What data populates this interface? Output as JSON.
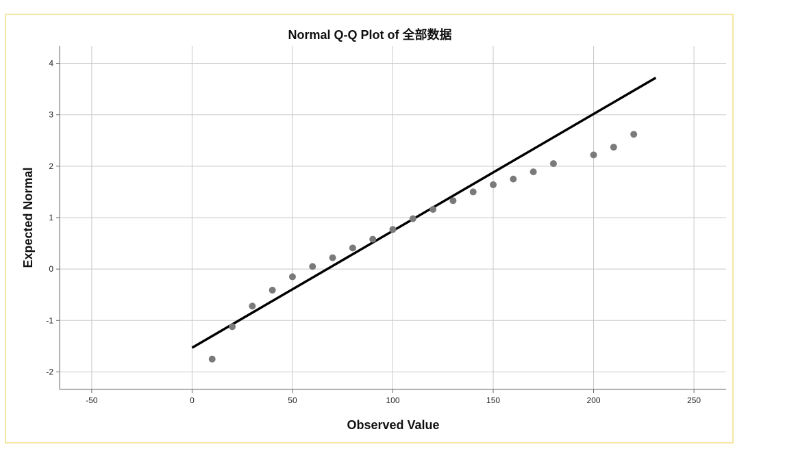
{
  "chart_data": {
    "type": "scatter",
    "title": "Normal Q-Q Plot of 全部数据",
    "xlabel": "Observed Value",
    "ylabel": "Expected Normal",
    "xlim": [
      -66,
      266
    ],
    "ylim": [
      -2.34,
      4.34
    ],
    "xticks": [
      -50,
      0,
      50,
      100,
      150,
      200,
      250
    ],
    "yticks": [
      -2,
      -1,
      0,
      1,
      2,
      3,
      4
    ],
    "grid": true,
    "series": [
      {
        "x": [
          10,
          20,
          30,
          40,
          50,
          60,
          70,
          80,
          90,
          100,
          110,
          120,
          130,
          140,
          150,
          160,
          170,
          180,
          200,
          210,
          220
        ],
        "y": [
          -1.75,
          -1.12,
          -0.72,
          -0.41,
          -0.15,
          0.05,
          0.22,
          0.41,
          0.58,
          0.77,
          0.98,
          1.16,
          1.33,
          1.5,
          1.64,
          1.75,
          1.89,
          2.05,
          2.22,
          2.37,
          2.62
        ],
        "color": "#7a7a7a"
      }
    ],
    "reference_line": {
      "x": [
        0,
        231
      ],
      "y": [
        -1.53,
        3.72
      ],
      "color": "#000000"
    }
  }
}
